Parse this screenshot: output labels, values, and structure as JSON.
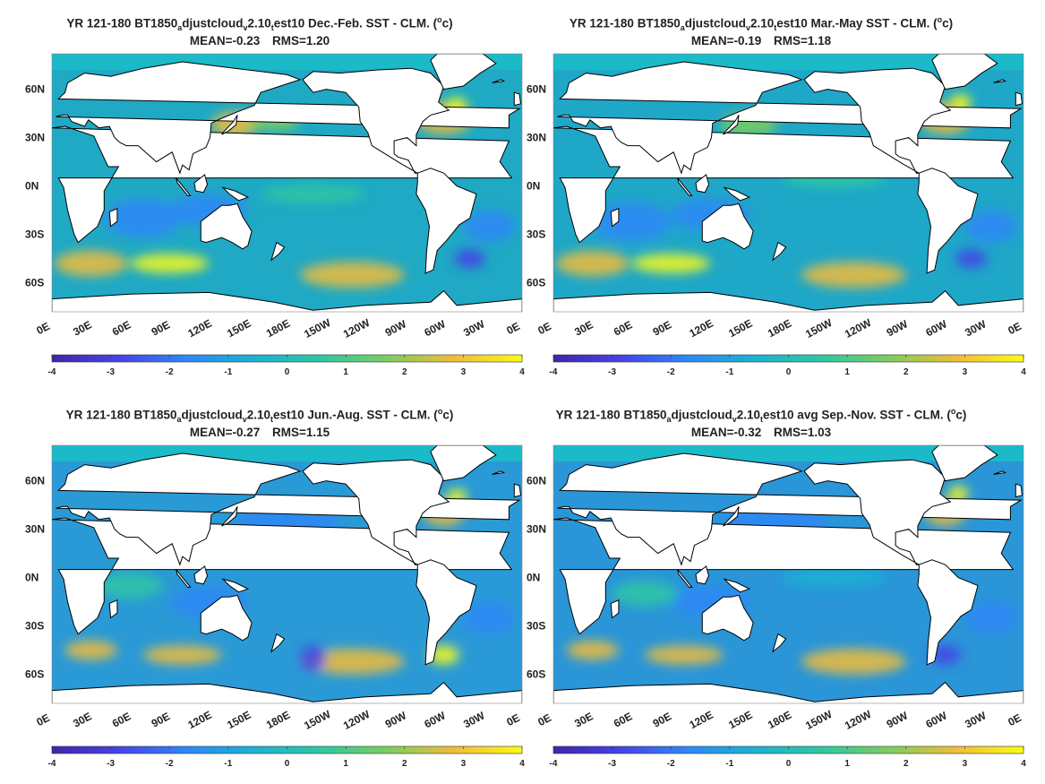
{
  "common": {
    "y_ticks": [
      "60N",
      "30N",
      "0N",
      "30S",
      "60S"
    ],
    "x_ticks": [
      "0E",
      "30E",
      "60E",
      "90E",
      "120E",
      "150E",
      "180E",
      "150W",
      "120W",
      "90W",
      "60W",
      "30W",
      "0E"
    ],
    "colorbar_ticks": [
      "-4",
      "-3",
      "-2",
      "-1",
      "0",
      "1",
      "2",
      "3",
      "4"
    ],
    "colormap": [
      "#3e26a8",
      "#4742e8",
      "#2e87f7",
      "#1ab2d4",
      "#2dc7a3",
      "#7dcd5f",
      "#f1bc3a",
      "#f9fb15"
    ],
    "units_note": "(°c)"
  },
  "panels": [
    {
      "title_prefix": "YR 121-180 BT1850",
      "sub1": "a",
      "title_mid1": "djustcloud",
      "sub2": "v",
      "title_mid2": "2.10",
      "sub3": "t",
      "title_suffix": "est10  Dec.-Feb. SST - CLM. (",
      "sup": "o",
      "title_end": "c)",
      "mean": "MEAN=-0.23",
      "rms": "RMS=1.20"
    },
    {
      "title_prefix": "YR 121-180 BT1850",
      "sub1": "a",
      "title_mid1": "djustcloud",
      "sub2": "v",
      "title_mid2": "2.10",
      "sub3": "t",
      "title_suffix": "est10 Mar.-May SST - CLM. (",
      "sup": "o",
      "title_end": "c)",
      "mean": "MEAN=-0.19",
      "rms": "RMS=1.18"
    },
    {
      "title_prefix": "YR 121-180 BT1850",
      "sub1": "a",
      "title_mid1": "djustcloud",
      "sub2": "v",
      "title_mid2": "2.10",
      "sub3": "t",
      "title_suffix": "est10 Jun.-Aug. SST - CLM. (",
      "sup": "o",
      "title_end": "c)",
      "mean": "MEAN=-0.27",
      "rms": "RMS=1.15"
    },
    {
      "title_prefix": "YR 121-180 BT1850",
      "sub1": "a",
      "title_mid1": "djustcloud",
      "sub2": "v",
      "title_mid2": "2.10",
      "sub3": "t",
      "title_suffix": "est10 avg Sep.-Nov. SST - CLM. (",
      "sup": "o",
      "title_end": "c)",
      "mean": "MEAN=-0.32",
      "rms": "RMS=1.03"
    }
  ]
}
